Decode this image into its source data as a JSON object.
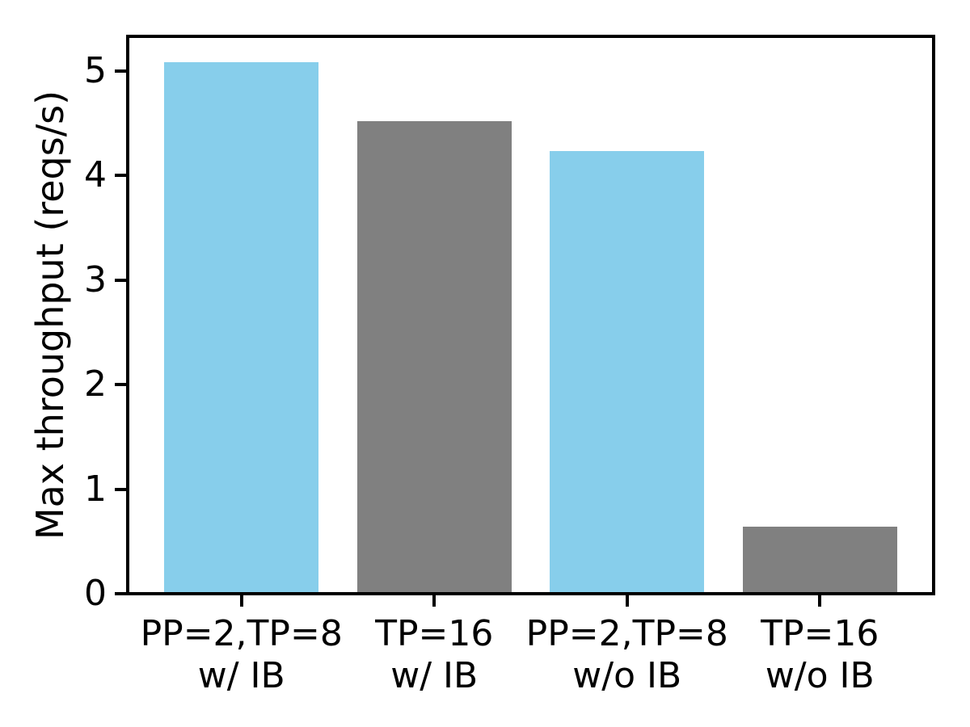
{
  "chart_data": {
    "type": "bar",
    "title": "",
    "xlabel": "",
    "ylabel": "Max throughput (reqs/s)",
    "categories": [
      "PP=2,TP=8\nw/ IB",
      "TP=16\nw/ IB",
      "PP=2,TP=8\nw/o IB",
      "TP=16\nw/o IB"
    ],
    "values": [
      5.08,
      4.52,
      4.23,
      0.64
    ],
    "bar_colors": [
      "#87CEEB",
      "#808080",
      "#87CEEB",
      "#808080"
    ],
    "ylim": [
      0,
      5.33
    ],
    "yticks": [
      0,
      1,
      2,
      3,
      4,
      5
    ],
    "ytick_labels": [
      "0",
      "1",
      "2",
      "3",
      "4",
      "5"
    ],
    "grid": false,
    "legend": "none",
    "axis_color": "#000000",
    "background_color": "#FFFFFF"
  }
}
